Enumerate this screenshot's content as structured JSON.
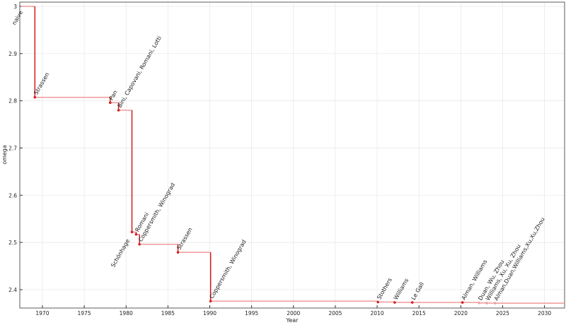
{
  "chart_data": {
    "type": "step",
    "x_label": "Year",
    "y_label": "omega",
    "x": [
      1967.5,
      1969.1,
      1978.1,
      1979.1,
      1980.7,
      1981.2,
      1981.6,
      1986.2,
      1990.1,
      2010.1,
      2012.1,
      2014.2,
      2020.2,
      2022.2,
      2023.1,
      2024.1
    ],
    "values": [
      3,
      2.8074,
      2.796,
      2.78,
      2.522,
      2.517,
      2.496,
      2.479,
      2.3755,
      2.3737,
      2.3729,
      2.3728639,
      2.3728596,
      2.371866,
      2.371552,
      2.371339
    ],
    "labels": [
      "naive",
      "Strassen",
      "Pan",
      "Bini, Capovani, Romani, Lotti",
      "Schönhage",
      "Romani",
      "Coppersmith, Winograd",
      "Strassen",
      "Coppersmith, Winograd",
      "Stothers",
      "Williams",
      "Le Gall",
      "Alman, Williams",
      "Duan, Wu, Zhou",
      "Williams, Xu, Xu, Zhou",
      "Alman,Duan,Williams,Xu,Xu,Zhou"
    ],
    "label_positions": [
      "below",
      "above",
      "above",
      "above",
      "below",
      "above",
      "above",
      "above",
      "above",
      "above",
      "above",
      "above",
      "above",
      "above",
      "above",
      "above"
    ],
    "label_colors": [
      "#222",
      "#222",
      "#222",
      "#222",
      "#222",
      "#222",
      "#222",
      "#222",
      "#222",
      "#222",
      "#222",
      "#222",
      "#222",
      "#999",
      "#999",
      "#999"
    ],
    "point_colors": [
      "#d62020",
      "#d62020",
      "#d62020",
      "#d62020",
      "#d62020",
      "#d62020",
      "#d62020",
      "#d62020",
      "#d62020",
      "#d62020",
      "#d62020",
      "#d62020",
      "#d62020",
      "#f0a0a0",
      "#f0a0a0",
      "#f0a0a0"
    ],
    "step_color": "#f09a9a",
    "drop_color": "#d41c1c",
    "xlim": [
      1967.3,
      2032.4
    ],
    "ylim": [
      2.361,
      3.009
    ],
    "xticks": [
      1970,
      1975,
      1980,
      1985,
      1990,
      1995,
      2000,
      2005,
      2010,
      2015,
      2020,
      2025,
      2030
    ],
    "yticks": [
      2.4,
      2.5,
      2.6,
      2.7,
      2.8,
      2.9,
      3
    ],
    "grid": true
  }
}
